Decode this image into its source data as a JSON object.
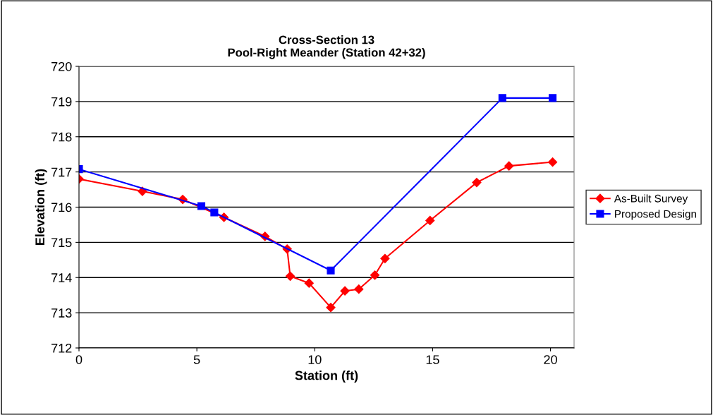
{
  "chart_data": {
    "type": "line",
    "title": "Cross-Section 13\nPool-Right Meander (Station 42+32)",
    "xlabel": "Station (ft)",
    "ylabel": "Elevation (ft)",
    "xlim": [
      0,
      21
    ],
    "xticks": [
      0,
      5,
      10,
      15,
      20
    ],
    "ylim": [
      712,
      720
    ],
    "yticks": [
      712,
      713,
      714,
      715,
      716,
      717,
      718,
      719,
      720
    ],
    "grid": "y",
    "legend": "right",
    "series": [
      {
        "name": "As-Built Survey",
        "color": "#ff0000",
        "marker": "diamond",
        "x": [
          0,
          2.69,
          4.4,
          6.15,
          7.89,
          8.83,
          8.96,
          9.76,
          10.68,
          11.28,
          11.87,
          12.55,
          12.98,
          14.89,
          16.87,
          18.24,
          20.09
        ],
        "values": [
          716.8,
          716.45,
          716.22,
          715.71,
          715.17,
          714.81,
          714.04,
          713.84,
          713.15,
          713.62,
          713.67,
          714.07,
          714.54,
          715.62,
          716.7,
          717.17,
          717.28
        ]
      },
      {
        "name": "Proposed Design",
        "color": "#0000ff",
        "marker": "square",
        "x": [
          0,
          5.19,
          5.74,
          10.68,
          17.96,
          20.09
        ],
        "values": [
          717.08,
          716.03,
          715.85,
          714.2,
          719.1,
          719.1
        ]
      }
    ]
  }
}
